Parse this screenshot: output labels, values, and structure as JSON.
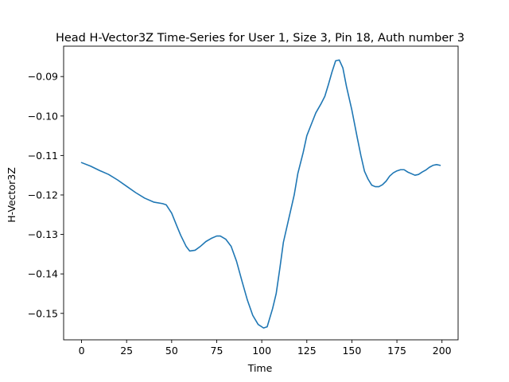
{
  "chart_data": {
    "type": "line",
    "title": "Head H-Vector3Z Time-Series for User 1, Size 3, Pin 18, Auth number 3",
    "xlabel": "Time",
    "ylabel": "H-Vector3Z",
    "xlim": [
      -9.95,
      208.95
    ],
    "ylim": [
      -0.1567,
      -0.0823
    ],
    "xticks": [
      0,
      25,
      50,
      75,
      100,
      125,
      150,
      175,
      200
    ],
    "xtick_labels": [
      "0",
      "25",
      "50",
      "75",
      "100",
      "125",
      "150",
      "175",
      "200"
    ],
    "yticks": [
      -0.15,
      -0.14,
      -0.13,
      -0.12,
      -0.11,
      -0.1,
      -0.09
    ],
    "ytick_labels": [
      "−0.15",
      "−0.14",
      "−0.13",
      "−0.12",
      "−0.11",
      "−0.10",
      "−0.09"
    ],
    "grid": false,
    "series": [
      {
        "color": "#1f77b4",
        "points": [
          [
            0,
            -0.1118
          ],
          [
            5,
            -0.1127
          ],
          [
            10,
            -0.1138
          ],
          [
            15,
            -0.1148
          ],
          [
            20,
            -0.1162
          ],
          [
            25,
            -0.1178
          ],
          [
            30,
            -0.1194
          ],
          [
            35,
            -0.1208
          ],
          [
            40,
            -0.1218
          ],
          [
            45,
            -0.1222
          ],
          [
            47,
            -0.1225
          ],
          [
            50,
            -0.1246
          ],
          [
            53,
            -0.128
          ],
          [
            55,
            -0.1302
          ],
          [
            58,
            -0.133
          ],
          [
            60,
            -0.1342
          ],
          [
            63,
            -0.134
          ],
          [
            66,
            -0.133
          ],
          [
            69,
            -0.1318
          ],
          [
            72,
            -0.131
          ],
          [
            75,
            -0.1304
          ],
          [
            77,
            -0.1304
          ],
          [
            80,
            -0.1312
          ],
          [
            83,
            -0.133
          ],
          [
            86,
            -0.1368
          ],
          [
            89,
            -0.1418
          ],
          [
            92,
            -0.1466
          ],
          [
            95,
            -0.1505
          ],
          [
            98,
            -0.1528
          ],
          [
            101,
            -0.1537
          ],
          [
            103,
            -0.1534
          ],
          [
            106,
            -0.1488
          ],
          [
            108,
            -0.145
          ],
          [
            110,
            -0.1387
          ],
          [
            112,
            -0.132
          ],
          [
            115,
            -0.126
          ],
          [
            118,
            -0.12
          ],
          [
            120,
            -0.1146
          ],
          [
            123,
            -0.1092
          ],
          [
            125,
            -0.105
          ],
          [
            128,
            -0.1015
          ],
          [
            130,
            -0.0992
          ],
          [
            133,
            -0.0968
          ],
          [
            135,
            -0.095
          ],
          [
            137,
            -0.092
          ],
          [
            139,
            -0.0888
          ],
          [
            141,
            -0.086
          ],
          [
            143,
            -0.0858
          ],
          [
            145,
            -0.0878
          ],
          [
            147,
            -0.0925
          ],
          [
            150,
            -0.0985
          ],
          [
            153,
            -0.1055
          ],
          [
            155,
            -0.11
          ],
          [
            157,
            -0.114
          ],
          [
            159,
            -0.116
          ],
          [
            161,
            -0.1175
          ],
          [
            163,
            -0.1179
          ],
          [
            165,
            -0.1179
          ],
          [
            167,
            -0.1174
          ],
          [
            169,
            -0.1165
          ],
          [
            171,
            -0.1152
          ],
          [
            173,
            -0.1144
          ],
          [
            175,
            -0.1139
          ],
          [
            177,
            -0.1136
          ],
          [
            179,
            -0.1136
          ],
          [
            181,
            -0.1142
          ],
          [
            183,
            -0.1146
          ],
          [
            185,
            -0.115
          ],
          [
            187,
            -0.1148
          ],
          [
            189,
            -0.1142
          ],
          [
            191,
            -0.1137
          ],
          [
            193,
            -0.113
          ],
          [
            195,
            -0.1125
          ],
          [
            197,
            -0.1123
          ],
          [
            199,
            -0.1125
          ]
        ]
      }
    ]
  }
}
